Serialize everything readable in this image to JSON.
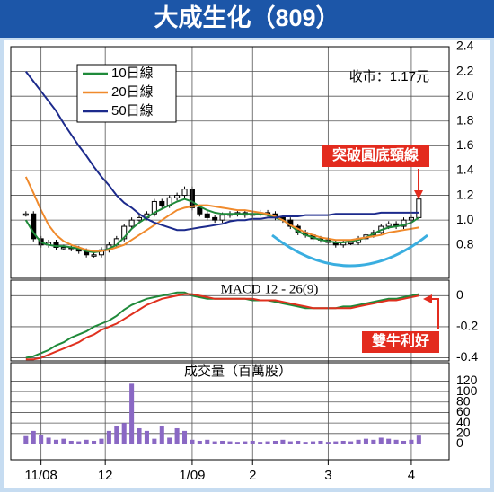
{
  "chart_data": [
    {
      "type": "line",
      "title": "大成生化（809）",
      "legend": "upper left",
      "grid": true,
      "annotations": [
        "收市：1.17元",
        "突破圓底頸線"
      ],
      "xlim": [
        -4,
        112
      ],
      "ylim": [
        0.53,
        2.4
      ],
      "yticks": [
        0.8,
        {
          "value": 1,
          "label": "1.0"
        },
        1.2,
        1.4,
        1.6,
        1.8,
        {
          "value": 2,
          "label": "2.0"
        },
        2.2,
        2.4
      ],
      "x": [
        0,
        2,
        4,
        6,
        8,
        10,
        12,
        14,
        16,
        18,
        20,
        22,
        24,
        26,
        28,
        30,
        32,
        34,
        36,
        38,
        40,
        42,
        44,
        46,
        48,
        50,
        52,
        54,
        56,
        58,
        60,
        62,
        64,
        66,
        68,
        70,
        72,
        74,
        76,
        78,
        80,
        82,
        84,
        86,
        88,
        90,
        92,
        94,
        96,
        98,
        100,
        102,
        104
      ],
      "series": [
        {
          "style": "candle",
          "color": "#000000",
          "values": [
            1.05,
            0.85,
            0.8,
            0.82,
            0.78,
            0.78,
            0.77,
            0.75,
            0.72,
            0.72,
            0.76,
            0.8,
            0.85,
            0.95,
            1.0,
            1.02,
            1.05,
            1.15,
            1.12,
            1.18,
            1.2,
            1.25,
            1.1,
            1.05,
            1.02,
            1.0,
            1.04,
            1.05,
            1.06,
            1.04,
            1.05,
            1.06,
            1.05,
            1.02,
            1.0,
            0.95,
            0.9,
            0.88,
            0.85,
            0.84,
            0.82,
            0.8,
            0.82,
            0.82,
            0.85,
            0.88,
            0.9,
            0.95,
            0.97,
            0.95,
            1.0,
            1.02,
            1.17
          ]
        },
        {
          "name": "10日線",
          "color": "#1f8a3a",
          "values": [
            1.0,
            0.9,
            0.82,
            0.8,
            0.79,
            0.79,
            0.78,
            0.77,
            0.75,
            0.74,
            0.75,
            0.77,
            0.8,
            0.86,
            0.93,
            0.98,
            1.02,
            1.06,
            1.09,
            1.12,
            1.15,
            1.17,
            1.15,
            1.11,
            1.08,
            1.06,
            1.05,
            1.05,
            1.05,
            1.05,
            1.05,
            1.05,
            1.04,
            1.02,
            1.0,
            0.96,
            0.91,
            0.88,
            0.86,
            0.84,
            0.83,
            0.82,
            0.82,
            0.83,
            0.84,
            0.86,
            0.89,
            0.92,
            0.94,
            0.95,
            0.96,
            0.98,
            1.02
          ]
        },
        {
          "name": "20日線",
          "color": "#f08a2c",
          "values": [
            1.35,
            1.22,
            1.08,
            0.96,
            0.88,
            0.83,
            0.8,
            0.78,
            0.76,
            0.75,
            0.75,
            0.76,
            0.78,
            0.8,
            0.84,
            0.88,
            0.92,
            0.96,
            1.0,
            1.04,
            1.08,
            1.1,
            1.11,
            1.12,
            1.12,
            1.11,
            1.1,
            1.09,
            1.08,
            1.08,
            1.07,
            1.06,
            1.05,
            1.03,
            1.0,
            0.96,
            0.93,
            0.9,
            0.88,
            0.86,
            0.85,
            0.84,
            0.84,
            0.84,
            0.85,
            0.86,
            0.87,
            0.88,
            0.9,
            0.91,
            0.92,
            0.93,
            0.94
          ]
        },
        {
          "name": "50日線",
          "color": "#1c2a8c",
          "values": [
            2.2,
            2.12,
            2.04,
            1.96,
            1.88,
            1.78,
            1.69,
            1.6,
            1.52,
            1.43,
            1.35,
            1.28,
            1.2,
            1.14,
            1.1,
            1.05,
            1.01,
            0.98,
            0.96,
            0.94,
            0.92,
            0.92,
            0.93,
            0.94,
            0.95,
            0.96,
            0.97,
            0.99,
            1.0,
            1.0,
            1.01,
            1.01,
            1.02,
            1.02,
            1.03,
            1.03,
            1.03,
            1.04,
            1.04,
            1.04,
            1.04,
            1.05,
            1.05,
            1.05,
            1.05,
            1.05,
            1.05,
            1.06,
            1.06,
            1.06,
            1.06,
            1.06,
            1.06
          ]
        }
      ]
    },
    {
      "type": "line",
      "title": "MACD 12 - 26(9)",
      "grid": true,
      "annotations": [
        "雙牛利好"
      ],
      "xlim": [
        -4,
        112
      ],
      "ylim": [
        -0.42,
        0.1
      ],
      "yticks": [
        -0.4,
        -0.2,
        0
      ],
      "x": [
        0,
        2,
        4,
        6,
        8,
        10,
        12,
        14,
        16,
        18,
        20,
        22,
        24,
        26,
        28,
        30,
        32,
        34,
        36,
        38,
        40,
        42,
        44,
        46,
        48,
        50,
        52,
        54,
        56,
        58,
        60,
        62,
        64,
        66,
        68,
        70,
        72,
        74,
        76,
        78,
        80,
        82,
        84,
        86,
        88,
        90,
        92,
        94,
        96,
        98,
        100,
        102,
        104
      ],
      "series": [
        {
          "color": "#1f8a3a",
          "values": [
            -0.4,
            -0.39,
            -0.37,
            -0.35,
            -0.32,
            -0.3,
            -0.27,
            -0.25,
            -0.23,
            -0.2,
            -0.18,
            -0.16,
            -0.13,
            -0.09,
            -0.06,
            -0.04,
            -0.02,
            -0.01,
            0.0,
            0.01,
            0.02,
            0.02,
            0.0,
            -0.01,
            -0.02,
            -0.02,
            -0.02,
            -0.02,
            -0.02,
            -0.02,
            -0.03,
            -0.03,
            -0.03,
            -0.04,
            -0.05,
            -0.06,
            -0.07,
            -0.08,
            -0.08,
            -0.08,
            -0.08,
            -0.08,
            -0.07,
            -0.07,
            -0.06,
            -0.05,
            -0.04,
            -0.03,
            -0.02,
            -0.02,
            -0.01,
            0.0,
            0.01
          ]
        },
        {
          "color": "#e0301e",
          "values": [
            -0.41,
            -0.41,
            -0.4,
            -0.38,
            -0.36,
            -0.34,
            -0.32,
            -0.3,
            -0.27,
            -0.25,
            -0.22,
            -0.2,
            -0.18,
            -0.15,
            -0.12,
            -0.09,
            -0.06,
            -0.04,
            -0.02,
            -0.01,
            0.0,
            0.01,
            0.01,
            0.0,
            -0.01,
            -0.02,
            -0.02,
            -0.02,
            -0.02,
            -0.02,
            -0.02,
            -0.03,
            -0.03,
            -0.03,
            -0.04,
            -0.05,
            -0.06,
            -0.07,
            -0.08,
            -0.08,
            -0.08,
            -0.08,
            -0.08,
            -0.08,
            -0.07,
            -0.06,
            -0.05,
            -0.04,
            -0.03,
            -0.03,
            -0.02,
            -0.01,
            0.0
          ]
        }
      ]
    },
    {
      "type": "bar",
      "title": "成交量（百萬股）",
      "grid": true,
      "color": "#8a68c4",
      "xlim": [
        -4,
        112
      ],
      "ylim": [
        -30,
        155
      ],
      "yticks": [
        0,
        20,
        40,
        60,
        80,
        100,
        120
      ],
      "xticks": [
        {
          "value": 4,
          "label": "11/08"
        },
        {
          "value": 21,
          "label": "12"
        },
        {
          "value": 44,
          "label": "1/09"
        },
        {
          "value": 60,
          "label": "2"
        },
        {
          "value": 80,
          "label": "3"
        },
        {
          "value": 102,
          "label": "4"
        }
      ],
      "x": [
        0,
        2,
        4,
        6,
        8,
        10,
        12,
        14,
        16,
        18,
        20,
        22,
        24,
        26,
        28,
        30,
        32,
        34,
        36,
        38,
        40,
        42,
        44,
        46,
        48,
        50,
        52,
        54,
        56,
        58,
        60,
        62,
        64,
        66,
        68,
        70,
        72,
        74,
        76,
        78,
        80,
        82,
        84,
        86,
        88,
        90,
        92,
        94,
        96,
        98,
        100,
        102,
        104
      ],
      "values": [
        15,
        25,
        18,
        12,
        8,
        10,
        6,
        5,
        8,
        6,
        10,
        25,
        35,
        40,
        115,
        30,
        25,
        10,
        35,
        12,
        30,
        25,
        8,
        6,
        8,
        5,
        6,
        5,
        4,
        5,
        6,
        4,
        5,
        6,
        8,
        5,
        6,
        4,
        5,
        6,
        4,
        5,
        6,
        5,
        8,
        10,
        8,
        12,
        10,
        8,
        6,
        8,
        16
      ]
    }
  ]
}
